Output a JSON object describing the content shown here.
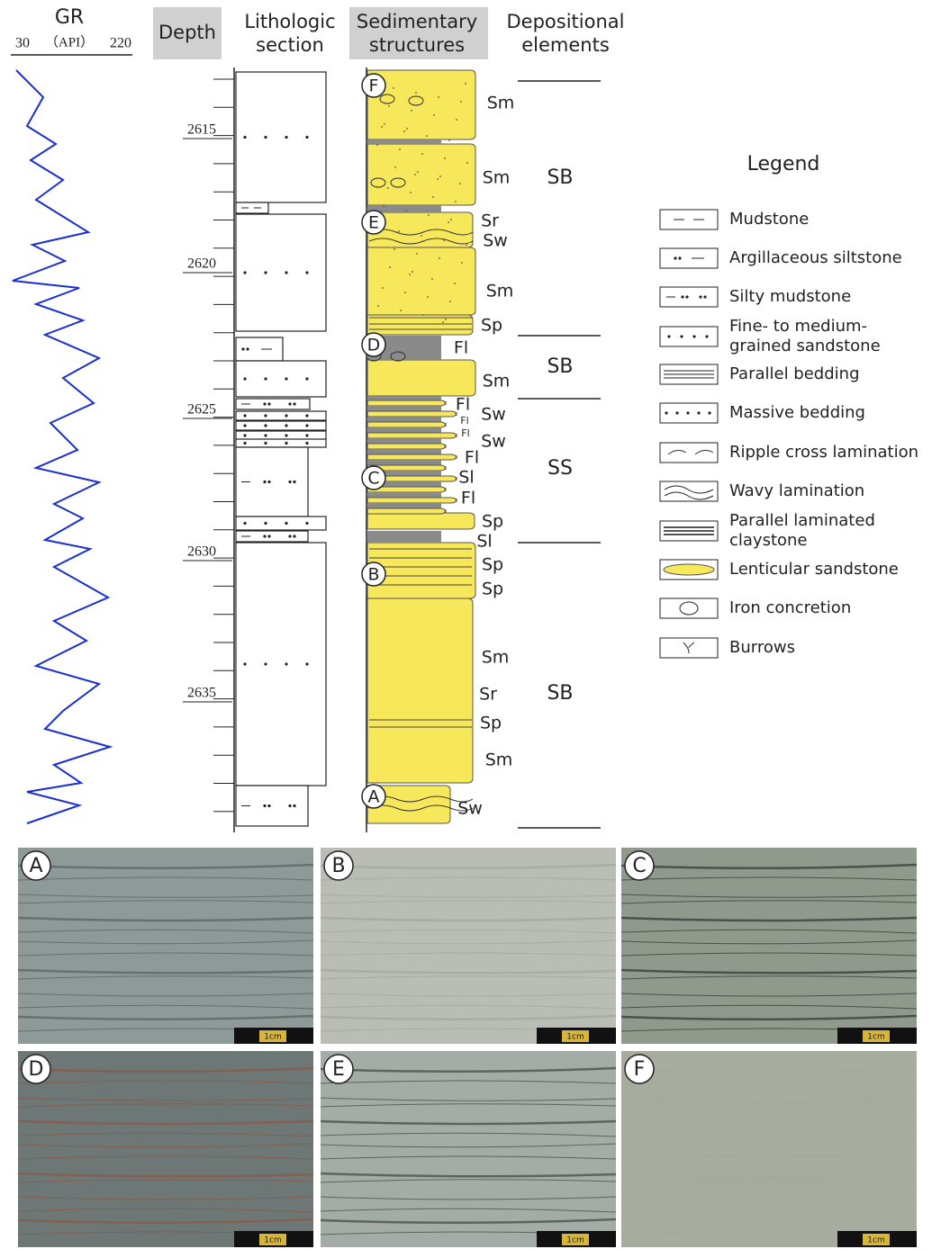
{
  "gr_log": {
    "title": "GR",
    "scale_min": "30",
    "scale_unit": "（API）",
    "scale_max": "220"
  },
  "headers": {
    "depth": [
      "Depth"
    ],
    "lithologic": [
      "Lithologic",
      "section"
    ],
    "sedimentary": [
      "Sedimentary",
      "structures"
    ],
    "depositional": [
      "Depositional",
      "elements"
    ]
  },
  "depth_labels": [
    "2615",
    "2620",
    "2625",
    "2630",
    "2635"
  ],
  "core_markers": [
    "F",
    "E",
    "D",
    "C",
    "B",
    "A"
  ],
  "structure_labels": [
    "Sm",
    "Sm",
    "Sr",
    "Sw",
    "Sm",
    "Sp",
    "Fl",
    "Sm",
    "Fl",
    "Sw",
    "Fl",
    "Fl",
    "Sw",
    "Fl",
    "Sl",
    "Fl",
    "Sp",
    "Sl",
    "Sp",
    "Sp",
    "Sm",
    "Sr",
    "Sp",
    "Sm",
    "Sw"
  ],
  "depositional_elements": [
    "SB",
    "SB",
    "SS",
    "SB"
  ],
  "legend": {
    "title": "Legend",
    "items": [
      [
        "Mudstone"
      ],
      [
        "Argillaceous siltstone"
      ],
      [
        "Silty mudstone"
      ],
      [
        "Fine- to medium-",
        "grained sandstone"
      ],
      [
        "Parallel bedding"
      ],
      [
        "Massive bedding"
      ],
      [
        "Ripple cross lamination"
      ],
      [
        "Wavy lamination"
      ],
      [
        "Parallel laminated",
        "claystone"
      ],
      [
        "Lenticular sandstone"
      ],
      [
        "Iron concretion"
      ],
      [
        "Burrows"
      ]
    ]
  },
  "photos": [
    {
      "label": "A",
      "scale": "1cm"
    },
    {
      "label": "B",
      "scale": "1cm"
    },
    {
      "label": "C",
      "scale": "1cm"
    },
    {
      "label": "D",
      "scale": "1cm"
    },
    {
      "label": "E",
      "scale": "1cm"
    },
    {
      "label": "F",
      "scale": "1cm"
    }
  ]
}
